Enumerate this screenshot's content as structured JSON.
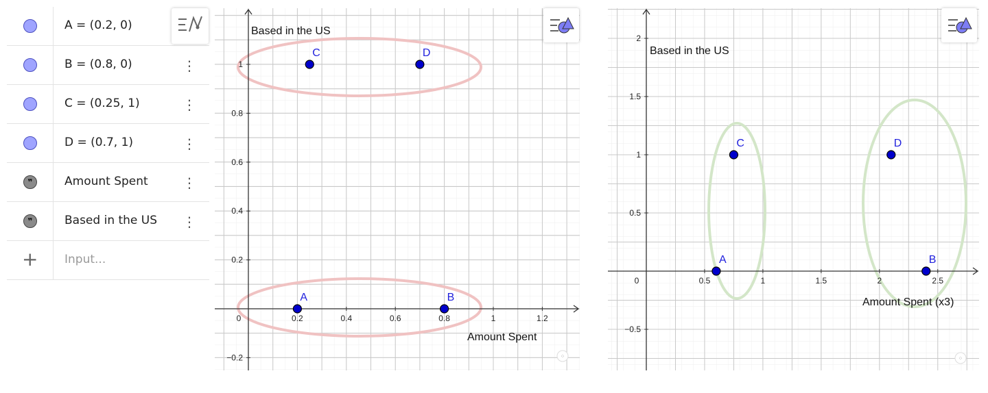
{
  "algebra": {
    "items": [
      {
        "text": "A = (0.2, 0)",
        "kind": "point"
      },
      {
        "text": "B = (0.8, 0)",
        "kind": "point"
      },
      {
        "text": "C = (0.25, 1)",
        "kind": "point"
      },
      {
        "text": "D = (0.7, 1)",
        "kind": "point"
      },
      {
        "text": "Amount Spent",
        "kind": "text"
      },
      {
        "text": "Based in the US",
        "kind": "text"
      }
    ],
    "input_placeholder": "Input...",
    "kebab_glyph": "⋮",
    "plus_glyph": "+",
    "quote_glyph": "❞"
  },
  "graphics1": {
    "ylabel": "Based in the US",
    "xlabel": "Amount Spent",
    "x_ticks": [
      "0",
      "0.2",
      "0.4",
      "0.6",
      "0.8",
      "1",
      "1.2"
    ],
    "y_ticks": [
      "1",
      "0.8",
      "0.6",
      "0.4",
      "0.2",
      "−0.2"
    ],
    "ellipse_color": "#f0c2c2",
    "point_color": "#0000cc"
  },
  "graphics2": {
    "ylabel": "Based in the US",
    "xlabel": "Amount Spent (x3)",
    "x_ticks": [
      "0",
      "0.5",
      "1",
      "1.5",
      "2",
      "2.5"
    ],
    "y_ticks": [
      "2",
      "1.5",
      "1",
      "0.5",
      "−0.5"
    ],
    "ellipse_color": "#d3e6c8",
    "point_color": "#0000cc"
  },
  "chart_data": [
    {
      "type": "scatter",
      "xlabel": "Amount Spent",
      "ylabel": "Based in the US",
      "xlim": [
        -0.13,
        1.35
      ],
      "ylim": [
        -0.25,
        1.17
      ],
      "grid": true,
      "points": [
        {
          "name": "A",
          "x": 0.2,
          "y": 0
        },
        {
          "name": "B",
          "x": 0.8,
          "y": 0
        },
        {
          "name": "C",
          "x": 0.25,
          "y": 1
        },
        {
          "name": "D",
          "x": 0.7,
          "y": 1
        }
      ]
    },
    {
      "type": "scatter",
      "xlabel": "Amount Spent (x3)",
      "ylabel": "Based in the US",
      "xlim": [
        -0.27,
        2.8
      ],
      "ylim": [
        -0.87,
        2.25
      ],
      "grid": true,
      "points": [
        {
          "name": "A",
          "x": 0.6,
          "y": 0
        },
        {
          "name": "B",
          "x": 2.4,
          "y": 0
        },
        {
          "name": "C",
          "x": 0.75,
          "y": 1
        },
        {
          "name": "D",
          "x": 2.1,
          "y": 1
        }
      ]
    }
  ]
}
